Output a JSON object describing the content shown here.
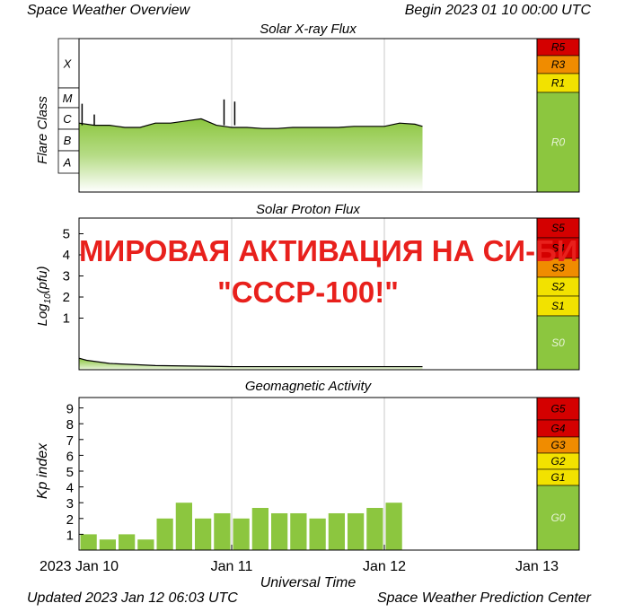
{
  "header": {
    "left": "Space Weather Overview",
    "right": "Begin 2023 01 10 00:00 UTC"
  },
  "footer": {
    "left": "Updated 2023 Jan 12 06:03 UTC",
    "right": "Space Weather Prediction Center"
  },
  "overlay": {
    "line1": "МИРОВАЯ АКТИВАЦИЯ НА СИ-БИ",
    "line2": "\"СССР-100!\""
  },
  "colors": {
    "fill": "#8cc63f",
    "fill_light": "#d6ecc0",
    "r_red": "#d40000",
    "r_orange": "#f08c00",
    "r_yellow": "#f2e200",
    "r_green": "#8cc63f",
    "overlay_red": "#e8201c"
  },
  "chart_data": [
    {
      "type": "area",
      "title": "Solar X-ray Flux",
      "ylabel": "Flare Class",
      "yticklabels": [
        "X",
        "M",
        "C",
        "B",
        "A"
      ],
      "scale_labels": [
        "R5",
        "R3",
        "R1",
        "R0"
      ],
      "x_days": [
        0,
        0.1,
        0.2,
        0.3,
        0.4,
        0.5,
        0.6,
        0.7,
        0.8,
        0.9,
        1.0,
        1.1,
        1.2,
        1.3,
        1.4,
        1.5,
        1.6,
        1.7,
        1.8,
        1.9,
        2.0,
        2.1,
        2.2,
        2.25
      ],
      "class_level": [
        3.2,
        3.1,
        3.1,
        3.0,
        3.0,
        3.2,
        3.2,
        3.3,
        3.4,
        3.1,
        3.0,
        3.0,
        2.95,
        2.95,
        3.0,
        3.0,
        3.0,
        3.0,
        3.05,
        3.05,
        3.05,
        3.2,
        3.15,
        3.05
      ],
      "peaks": [
        {
          "x": 0.02,
          "class_level": 4.1
        },
        {
          "x": 0.1,
          "class_level": 3.6
        },
        {
          "x": 0.95,
          "class_level": 4.3
        },
        {
          "x": 1.02,
          "class_level": 4.2
        }
      ]
    },
    {
      "type": "area",
      "title": "Solar Proton Flux",
      "ylabel": "Log10(pfu)",
      "yticks": [
        1,
        2,
        3,
        4,
        5
      ],
      "scale_labels": [
        "S5",
        "S4",
        "S3",
        "S2",
        "S1",
        "S0"
      ],
      "x_days": [
        0,
        0.05,
        0.2,
        0.5,
        1.0,
        1.5,
        2.0,
        2.25
      ],
      "log10_pfu": [
        -0.9,
        -1.0,
        -1.15,
        -1.25,
        -1.3,
        -1.3,
        -1.3,
        -1.3
      ]
    },
    {
      "type": "bar",
      "title": "Geomagnetic Activity",
      "ylabel": "Kp index",
      "xlabel": "Universal Time",
      "yticks": [
        1,
        2,
        3,
        4,
        5,
        6,
        7,
        8,
        9
      ],
      "ylim": [
        0,
        10
      ],
      "scale_labels": [
        "G5",
        "G4",
        "G3",
        "G2",
        "G1",
        "G0"
      ],
      "interval_hours": 3,
      "kp": [
        1.0,
        0.67,
        1.0,
        0.67,
        2.0,
        3.0,
        2.0,
        2.33,
        2.0,
        2.67,
        2.33,
        2.33,
        2.0,
        2.33,
        2.33,
        2.67,
        3.0
      ],
      "xticklabels": [
        "2023 Jan 10",
        "Jan 11",
        "Jan 12",
        "Jan 13"
      ]
    }
  ]
}
